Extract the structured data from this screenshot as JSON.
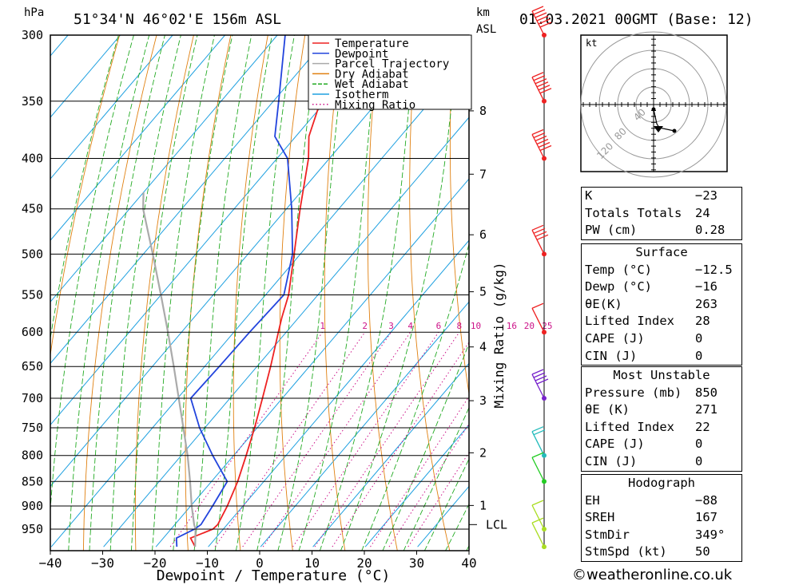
{
  "header": {
    "location": "51°34'N 46°02'E 156m ASL",
    "datetime": "01.03.2021 00GMT (Base: 12)",
    "hpa_label": "hPa",
    "km_label": "km",
    "asl_label": "ASL"
  },
  "axes": {
    "xlabel": "Dewpoint / Temperature (°C)",
    "mixing_label": "Mixing Ratio (g/kg)",
    "lcl_label": "LCL"
  },
  "legend": [
    {
      "label": "Temperature",
      "color": "#ee2222",
      "style": "solid"
    },
    {
      "label": "Dewpoint",
      "color": "#2244dd",
      "style": "solid"
    },
    {
      "label": "Parcel Trajectory",
      "color": "#aaaaaa",
      "style": "solid"
    },
    {
      "label": "Dry Adiabat",
      "color": "#e08010",
      "style": "solid"
    },
    {
      "label": "Wet Adiabat",
      "color": "#22aa22",
      "style": "dashed"
    },
    {
      "label": "Isotherm",
      "color": "#1ea0e0",
      "style": "solid"
    },
    {
      "label": "Mixing Ratio",
      "color": "#cc1188",
      "style": "dotted"
    }
  ],
  "chart_data": {
    "type": "line",
    "chart_kind": "skew-T log-P sounding",
    "pressure_levels": [
      300,
      350,
      400,
      450,
      500,
      550,
      600,
      650,
      700,
      750,
      800,
      850,
      900,
      950
    ],
    "temperature_ticks": [
      "−40",
      "−30",
      "−20",
      "−10",
      "0",
      "10",
      "20",
      "30",
      "40"
    ],
    "height_ticks_km": [
      "1",
      "2",
      "3",
      "4",
      "5",
      "6",
      "7",
      "8"
    ],
    "height_tick_pressures": [
      899,
      795,
      704,
      621,
      546,
      478,
      415,
      358
    ],
    "mixing_ratio_labels": [
      "1",
      "2",
      "3",
      "4",
      "6",
      "8",
      "10",
      "16",
      "20",
      "25"
    ],
    "mixing_ratio_values": [
      1,
      2,
      3,
      4,
      6,
      8,
      10,
      16,
      20,
      25
    ],
    "series": [
      {
        "name": "Temperature",
        "p": [
          990,
          970,
          950,
          940,
          900,
          850,
          800,
          750,
          700,
          650,
          600,
          580,
          550,
          500,
          450,
          400,
          380,
          350,
          300
        ],
        "t": [
          -12.5,
          -14.8,
          -12.0,
          -11.8,
          -13.0,
          -15.0,
          -17.6,
          -20.5,
          -23.8,
          -27.4,
          -31.5,
          -33.2,
          -35.6,
          -41.2,
          -47.4,
          -54.0,
          -57.5,
          -61.0,
          -69.5
        ]
      },
      {
        "name": "Dewpoint",
        "p": [
          990,
          970,
          950,
          940,
          900,
          850,
          800,
          750,
          700,
          650,
          600,
          550,
          500,
          450,
          400,
          380,
          350,
          300
        ],
        "t": [
          -16.0,
          -17.5,
          -15.5,
          -15.0,
          -15.8,
          -17.0,
          -24.0,
          -31.0,
          -37.5,
          -37.2,
          -37.0,
          -36.5,
          -41.5,
          -49.0,
          -58.0,
          -64.0,
          -69.0,
          -78.5
        ]
      },
      {
        "name": "Parcel Trajectory",
        "p": [
          990,
          950,
          940,
          900,
          850,
          800,
          750,
          700,
          650,
          600,
          550,
          500,
          450,
          433
        ],
        "t": [
          -12.5,
          -15.3,
          -16.3,
          -19.8,
          -24.1,
          -28.8,
          -34.1,
          -39.8,
          -45.9,
          -52.6,
          -60.0,
          -68.2,
          -77.4,
          -80.0
        ]
      }
    ],
    "lcl_pressure": 940,
    "wind_barbs": [
      {
        "p": 300,
        "speed_kt": 60,
        "color": "#ee2222"
      },
      {
        "p": 350,
        "speed_kt": 60,
        "color": "#ee2222"
      },
      {
        "p": 400,
        "speed_kt": 60,
        "color": "#ee2222"
      },
      {
        "p": 500,
        "speed_kt": 40,
        "color": "#ee2222"
      },
      {
        "p": 600,
        "speed_kt": 10,
        "color": "#ee2222"
      },
      {
        "p": 700,
        "speed_kt": 40,
        "color": "#7722cc"
      },
      {
        "p": 800,
        "speed_kt": 20,
        "color": "#22bbbb"
      },
      {
        "p": 850,
        "speed_kt": 10,
        "color": "#22cc22"
      },
      {
        "p": 950,
        "speed_kt": 10,
        "color": "#aadd22"
      },
      {
        "p": 990,
        "speed_kt": 10,
        "color": "#aadd22"
      }
    ],
    "hodograph": {
      "unit_label": "kt",
      "ring_labels": [
        "40",
        "80",
        "120"
      ]
    }
  },
  "table": {
    "block1": [
      {
        "label": "K",
        "value": "−23"
      },
      {
        "label": "Totals Totals",
        "value": "24"
      },
      {
        "label": "PW (cm)",
        "value": "0.28"
      }
    ],
    "surface": {
      "title": "Surface",
      "rows": [
        {
          "label": "Temp (°C)",
          "value": "−12.5"
        },
        {
          "label": "Dewp (°C)",
          "value": "−16"
        },
        {
          "label": "θE(K)",
          "value": "263"
        },
        {
          "label": "Lifted Index",
          "value": "28"
        },
        {
          "label": "CAPE (J)",
          "value": "0"
        },
        {
          "label": "CIN (J)",
          "value": "0"
        }
      ]
    },
    "unstable": {
      "title": "Most Unstable",
      "rows": [
        {
          "label": "Pressure (mb)",
          "value": "850"
        },
        {
          "label": "θE (K)",
          "value": "271"
        },
        {
          "label": "Lifted Index",
          "value": "22"
        },
        {
          "label": "CAPE (J)",
          "value": "0"
        },
        {
          "label": "CIN (J)",
          "value": "0"
        }
      ]
    },
    "hodo": {
      "title": "Hodograph",
      "rows": [
        {
          "label": "EH",
          "value": "−88"
        },
        {
          "label": "SREH",
          "value": "167"
        },
        {
          "label": "StmDir",
          "value": "349°"
        },
        {
          "label": "StmSpd (kt)",
          "value": "50"
        }
      ]
    }
  },
  "footer": {
    "copyright": "©weatheronline.co.uk"
  }
}
